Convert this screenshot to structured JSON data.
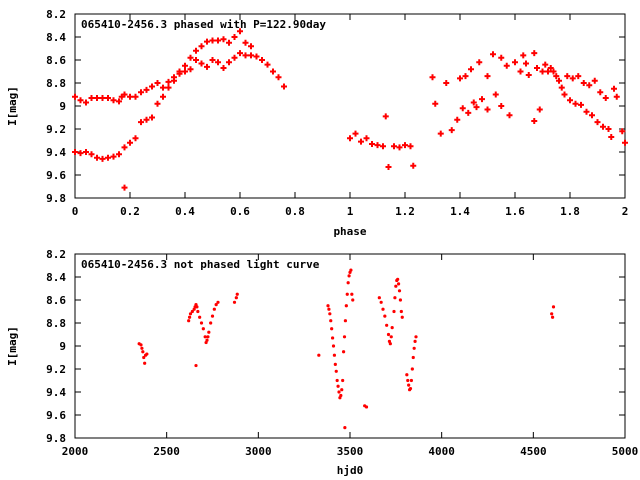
{
  "chart_data": [
    {
      "type": "scatter",
      "title": "065410-2456.3 phased with P=122.90day",
      "xlabel": "phase",
      "ylabel": "I[mag]",
      "xlim": [
        0,
        2
      ],
      "ylim": [
        9.8,
        8.2
      ],
      "y_inverted": true,
      "x_ticks": [
        "0",
        "0.2",
        "0.4",
        "0.6",
        "0.8",
        "1",
        "1.2",
        "1.4",
        "1.6",
        "1.8",
        "2"
      ],
      "y_ticks": [
        "8.2",
        "8.4",
        "8.6",
        "8.8",
        "9",
        "9.2",
        "9.4",
        "9.6",
        "9.8"
      ],
      "grid": false,
      "marker_color": "#ff0000",
      "marker": "plus-filled",
      "series": [
        {
          "points": [
            [
              0.0,
              8.92
            ],
            [
              0.02,
              8.95
            ],
            [
              0.04,
              8.97
            ],
            [
              0.06,
              8.93
            ],
            [
              0.08,
              8.93
            ],
            [
              0.1,
              8.93
            ],
            [
              0.12,
              8.93
            ],
            [
              0.14,
              8.95
            ],
            [
              0.16,
              8.96
            ],
            [
              0.17,
              8.92
            ],
            [
              0.18,
              8.9
            ],
            [
              0.2,
              8.92
            ],
            [
              0.22,
              8.92
            ],
            [
              0.24,
              8.88
            ],
            [
              0.26,
              8.86
            ],
            [
              0.28,
              8.83
            ],
            [
              0.3,
              8.8
            ],
            [
              0.32,
              8.84
            ],
            [
              0.34,
              8.79
            ],
            [
              0.36,
              8.75
            ],
            [
              0.38,
              8.7
            ],
            [
              0.4,
              8.65
            ],
            [
              0.42,
              8.58
            ],
            [
              0.44,
              8.52
            ],
            [
              0.46,
              8.48
            ],
            [
              0.48,
              8.44
            ],
            [
              0.5,
              8.43
            ],
            [
              0.52,
              8.43
            ],
            [
              0.54,
              8.42
            ],
            [
              0.56,
              8.45
            ],
            [
              0.58,
              8.4
            ],
            [
              0.6,
              8.35
            ],
            [
              0.62,
              8.45
            ],
            [
              0.64,
              8.48
            ],
            [
              0.44,
              8.6
            ],
            [
              0.46,
              8.63
            ],
            [
              0.48,
              8.66
            ],
            [
              0.5,
              8.6
            ],
            [
              0.52,
              8.62
            ],
            [
              0.54,
              8.67
            ],
            [
              0.56,
              8.62
            ],
            [
              0.58,
              8.58
            ],
            [
              0.6,
              8.54
            ],
            [
              0.62,
              8.56
            ],
            [
              0.64,
              8.56
            ],
            [
              0.66,
              8.57
            ],
            [
              0.68,
              8.6
            ],
            [
              0.7,
              8.64
            ],
            [
              0.72,
              8.7
            ],
            [
              0.74,
              8.75
            ],
            [
              0.76,
              8.83
            ],
            [
              0.0,
              9.4
            ],
            [
              0.02,
              9.41
            ],
            [
              0.04,
              9.4
            ],
            [
              0.06,
              9.42
            ],
            [
              0.08,
              9.45
            ],
            [
              0.1,
              9.46
            ],
            [
              0.12,
              9.45
            ],
            [
              0.14,
              9.44
            ],
            [
              0.16,
              9.42
            ],
            [
              0.18,
              9.36
            ],
            [
              0.2,
              9.32
            ],
            [
              0.22,
              9.28
            ],
            [
              0.24,
              9.14
            ],
            [
              0.26,
              9.12
            ],
            [
              0.28,
              9.1
            ],
            [
              0.3,
              8.98
            ],
            [
              0.32,
              8.92
            ],
            [
              0.34,
              8.84
            ],
            [
              0.36,
              8.78
            ],
            [
              0.38,
              8.72
            ],
            [
              0.4,
              8.7
            ],
            [
              0.42,
              8.68
            ],
            [
              0.18,
              9.71
            ],
            [
              1.0,
              9.28
            ],
            [
              1.02,
              9.24
            ],
            [
              1.04,
              9.31
            ],
            [
              1.06,
              9.28
            ],
            [
              1.08,
              9.33
            ],
            [
              1.1,
              9.34
            ],
            [
              1.12,
              9.35
            ],
            [
              1.13,
              9.09
            ],
            [
              1.14,
              9.53
            ],
            [
              1.16,
              9.35
            ],
            [
              1.18,
              9.36
            ],
            [
              1.2,
              9.34
            ],
            [
              1.22,
              9.35
            ],
            [
              1.23,
              9.52
            ],
            [
              1.3,
              8.75
            ],
            [
              1.31,
              8.98
            ],
            [
              1.33,
              9.24
            ],
            [
              1.35,
              8.8
            ],
            [
              1.37,
              9.21
            ],
            [
              1.39,
              9.12
            ],
            [
              1.4,
              8.76
            ],
            [
              1.41,
              9.02
            ],
            [
              1.42,
              8.74
            ],
            [
              1.43,
              9.06
            ],
            [
              1.44,
              8.68
            ],
            [
              1.45,
              8.97
            ],
            [
              1.46,
              9.01
            ],
            [
              1.47,
              8.62
            ],
            [
              1.48,
              8.94
            ],
            [
              1.5,
              8.74
            ],
            [
              1.5,
              9.03
            ],
            [
              1.52,
              8.55
            ],
            [
              1.53,
              8.9
            ],
            [
              1.55,
              8.58
            ],
            [
              1.55,
              9.0
            ],
            [
              1.57,
              8.65
            ],
            [
              1.58,
              9.08
            ],
            [
              1.6,
              8.62
            ],
            [
              1.62,
              8.7
            ],
            [
              1.63,
              8.56
            ],
            [
              1.64,
              8.63
            ],
            [
              1.65,
              8.73
            ],
            [
              1.67,
              8.54
            ],
            [
              1.67,
              9.13
            ],
            [
              1.68,
              8.67
            ],
            [
              1.69,
              9.03
            ],
            [
              1.7,
              8.7
            ],
            [
              1.71,
              8.64
            ],
            [
              1.72,
              8.7
            ],
            [
              1.73,
              8.67
            ],
            [
              1.74,
              8.7
            ],
            [
              1.75,
              8.74
            ],
            [
              1.76,
              8.78
            ],
            [
              1.77,
              8.84
            ],
            [
              1.78,
              8.9
            ],
            [
              1.79,
              8.74
            ],
            [
              1.8,
              8.95
            ],
            [
              1.81,
              8.76
            ],
            [
              1.82,
              8.98
            ],
            [
              1.83,
              8.74
            ],
            [
              1.84,
              8.99
            ],
            [
              1.85,
              8.8
            ],
            [
              1.86,
              9.05
            ],
            [
              1.87,
              8.82
            ],
            [
              1.88,
              9.08
            ],
            [
              1.89,
              8.78
            ],
            [
              1.9,
              9.14
            ],
            [
              1.91,
              8.88
            ],
            [
              1.92,
              9.18
            ],
            [
              1.93,
              8.93
            ],
            [
              1.94,
              9.2
            ],
            [
              1.95,
              9.27
            ],
            [
              1.96,
              8.85
            ],
            [
              1.97,
              8.92
            ],
            [
              1.99,
              9.22
            ],
            [
              2.0,
              9.32
            ]
          ]
        }
      ]
    },
    {
      "type": "scatter",
      "title": "065410-2456.3 not phased light curve",
      "xlabel": "hjd0",
      "ylabel": "I[mag]",
      "xlim": [
        2000,
        5000
      ],
      "ylim": [
        9.8,
        8.2
      ],
      "y_inverted": true,
      "x_ticks": [
        "2000",
        "2500",
        "3000",
        "3500",
        "4000",
        "4500",
        "5000"
      ],
      "y_ticks": [
        "8.2",
        "8.4",
        "8.6",
        "8.8",
        "9",
        "9.2",
        "9.4",
        "9.6",
        "9.8"
      ],
      "grid": false,
      "marker_color": "#ff0000",
      "marker": "dot",
      "series": [
        {
          "points": [
            [
              2350,
              8.98
            ],
            [
              2360,
              8.99
            ],
            [
              2365,
              9.02
            ],
            [
              2370,
              9.05
            ],
            [
              2375,
              9.1
            ],
            [
              2380,
              9.15
            ],
            [
              2385,
              9.08
            ],
            [
              2392,
              9.07
            ],
            [
              2620,
              8.78
            ],
            [
              2625,
              8.75
            ],
            [
              2630,
              8.72
            ],
            [
              2640,
              8.7
            ],
            [
              2650,
              8.68
            ],
            [
              2655,
              8.66
            ],
            [
              2660,
              8.64
            ],
            [
              2665,
              8.66
            ],
            [
              2660,
              9.17
            ],
            [
              2670,
              8.7
            ],
            [
              2680,
              8.75
            ],
            [
              2690,
              8.8
            ],
            [
              2700,
              8.85
            ],
            [
              2710,
              8.92
            ],
            [
              2715,
              8.97
            ],
            [
              2720,
              8.95
            ],
            [
              2725,
              8.92
            ],
            [
              2730,
              8.88
            ],
            [
              2740,
              8.8
            ],
            [
              2750,
              8.74
            ],
            [
              2760,
              8.68
            ],
            [
              2770,
              8.64
            ],
            [
              2780,
              8.62
            ],
            [
              2870,
              8.62
            ],
            [
              2880,
              8.58
            ],
            [
              2885,
              8.55
            ],
            [
              3330,
              9.08
            ],
            [
              3380,
              8.65
            ],
            [
              3385,
              8.68
            ],
            [
              3390,
              8.72
            ],
            [
              3395,
              8.78
            ],
            [
              3400,
              8.85
            ],
            [
              3405,
              8.93
            ],
            [
              3410,
              9.0
            ],
            [
              3415,
              9.08
            ],
            [
              3420,
              9.16
            ],
            [
              3425,
              9.22
            ],
            [
              3430,
              9.3
            ],
            [
              3435,
              9.35
            ],
            [
              3440,
              9.4
            ],
            [
              3445,
              9.45
            ],
            [
              3450,
              9.43
            ],
            [
              3455,
              9.38
            ],
            [
              3460,
              9.3
            ],
            [
              3465,
              9.05
            ],
            [
              3470,
              8.92
            ],
            [
              3472,
              9.71
            ],
            [
              3475,
              8.78
            ],
            [
              3480,
              8.65
            ],
            [
              3485,
              8.55
            ],
            [
              3490,
              8.45
            ],
            [
              3495,
              8.39
            ],
            [
              3500,
              8.36
            ],
            [
              3505,
              8.34
            ],
            [
              3510,
              8.55
            ],
            [
              3515,
              8.6
            ],
            [
              3580,
              9.52
            ],
            [
              3590,
              9.53
            ],
            [
              3660,
              8.58
            ],
            [
              3670,
              8.62
            ],
            [
              3680,
              8.68
            ],
            [
              3690,
              8.74
            ],
            [
              3700,
              8.82
            ],
            [
              3710,
              8.9
            ],
            [
              3715,
              8.96
            ],
            [
              3720,
              8.98
            ],
            [
              3725,
              8.92
            ],
            [
              3730,
              8.84
            ],
            [
              3740,
              8.7
            ],
            [
              3745,
              8.58
            ],
            [
              3750,
              8.48
            ],
            [
              3755,
              8.43
            ],
            [
              3760,
              8.42
            ],
            [
              3765,
              8.46
            ],
            [
              3770,
              8.52
            ],
            [
              3775,
              8.6
            ],
            [
              3780,
              8.7
            ],
            [
              3785,
              8.75
            ],
            [
              3810,
              9.25
            ],
            [
              3815,
              9.3
            ],
            [
              3820,
              9.34
            ],
            [
              3825,
              9.38
            ],
            [
              3830,
              9.37
            ],
            [
              3835,
              9.3
            ],
            [
              3840,
              9.2
            ],
            [
              3845,
              9.1
            ],
            [
              3850,
              9.02
            ],
            [
              3855,
              8.96
            ],
            [
              3860,
              8.92
            ],
            [
              4600,
              8.72
            ],
            [
              4605,
              8.75
            ],
            [
              4610,
              8.66
            ]
          ]
        }
      ]
    }
  ]
}
